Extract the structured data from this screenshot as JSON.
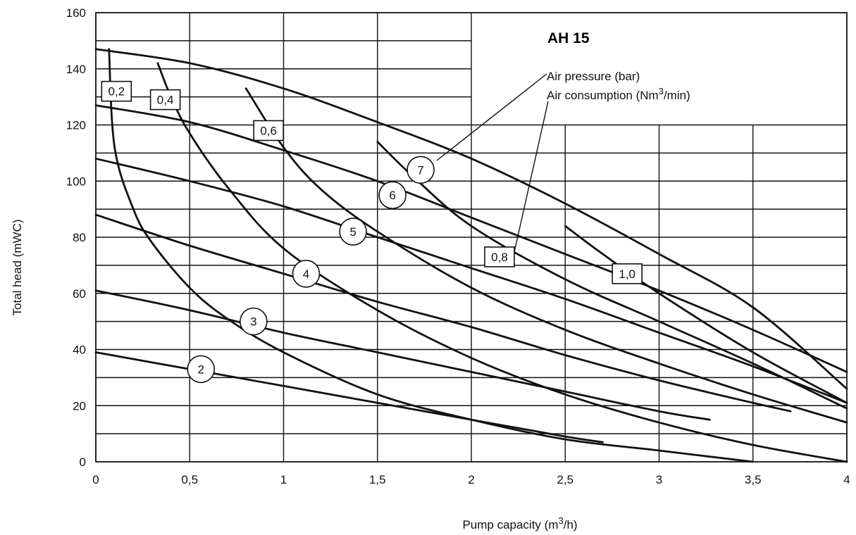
{
  "chart_data": {
    "type": "line",
    "title": "AH 15",
    "xlabel": "Pump capacity (m3/h)",
    "xlabel_main": "Pump capacity (m",
    "xlabel_sup": "3",
    "xlabel_end": "/h)",
    "ylabel": "Total head (mWC)",
    "xlim": [
      0,
      4
    ],
    "ylim": [
      0,
      160
    ],
    "x_ticks": [
      0,
      0.5,
      1,
      1.5,
      2,
      2.5,
      3,
      3.5,
      4
    ],
    "x_tick_labels": [
      "0",
      "0,5",
      "1",
      "1,5",
      "2",
      "2,5",
      "3",
      "3,5",
      "4"
    ],
    "y_ticks": [
      0,
      20,
      40,
      60,
      80,
      100,
      120,
      140,
      160
    ],
    "y_tick_labels": [
      "0",
      "20",
      "40",
      "60",
      "80",
      "100",
      "120",
      "140",
      "160"
    ],
    "grid": true,
    "legend": {
      "line1": "Air pressure (bar)",
      "line2_main": "Air consumption (Nm",
      "line2_sup": "3",
      "line2_end": "/min)"
    },
    "pressure_series": [
      {
        "name": "2",
        "x": [
          0,
          0.5,
          1,
          1.5,
          2,
          2.5,
          2.7
        ],
        "y": [
          39,
          33,
          27,
          21,
          15,
          9,
          7
        ]
      },
      {
        "name": "3",
        "x": [
          0,
          0.5,
          1,
          1.5,
          2,
          2.5,
          3,
          3.27
        ],
        "y": [
          61,
          54,
          46,
          39,
          32,
          25,
          18,
          15
        ]
      },
      {
        "name": "4",
        "x": [
          0,
          0.5,
          1,
          1.5,
          2,
          2.5,
          3,
          3.5,
          3.7
        ],
        "y": [
          88,
          77,
          67,
          57,
          48,
          38,
          29,
          21,
          18
        ]
      },
      {
        "name": "5",
        "x": [
          0,
          0.5,
          1,
          1.5,
          2,
          2.5,
          3,
          3.5,
          4
        ],
        "y": [
          108,
          100,
          91,
          80,
          69,
          58,
          46,
          34,
          21
        ]
      },
      {
        "name": "6",
        "x": [
          0,
          0.5,
          1,
          1.5,
          2,
          2.5,
          3,
          3.5,
          4
        ],
        "y": [
          127,
          121,
          111,
          100,
          87,
          74,
          61,
          47,
          32
        ]
      },
      {
        "name": "7",
        "x": [
          0,
          0.5,
          1,
          1.5,
          2,
          2.5,
          3,
          3.5,
          4
        ],
        "y": [
          147,
          142,
          133,
          121,
          108,
          92,
          74,
          55,
          26
        ]
      }
    ],
    "consumption_series": [
      {
        "name": "0,2",
        "x": [
          0.07,
          0.1,
          0.2,
          0.3,
          0.5,
          0.7,
          1.0,
          1.5,
          2.0,
          2.5,
          3.0,
          3.5
        ],
        "y": [
          147,
          112,
          90,
          78,
          62,
          51,
          39,
          24,
          15,
          8,
          4,
          0
        ]
      },
      {
        "name": "0,4",
        "x": [
          0.33,
          0.4,
          0.5,
          0.7,
          1.0,
          1.5,
          2.0,
          2.5,
          3.0,
          3.5,
          4.0
        ],
        "y": [
          142,
          130,
          117,
          98,
          76,
          54,
          37,
          24,
          14,
          6,
          0
        ]
      },
      {
        "name": "0,6",
        "x": [
          0.8,
          1.0,
          1.2,
          1.5,
          2.0,
          2.5,
          3.0,
          3.5,
          4.0
        ],
        "y": [
          133,
          112,
          97,
          82,
          62,
          47,
          35,
          24,
          14
        ]
      },
      {
        "name": "0,8",
        "x": [
          1.5,
          1.7,
          2.0,
          2.5,
          3.0,
          3.5,
          4.0
        ],
        "y": [
          114,
          101,
          84,
          65,
          50,
          35,
          19
        ]
      },
      {
        "name": "1,0",
        "x": [
          2.5,
          2.7,
          3.0,
          3.5,
          4.0
        ],
        "y": [
          84,
          74,
          60,
          39,
          21
        ]
      }
    ],
    "curve_labels": [
      {
        "text": "2",
        "shape": "circle",
        "x": 0.56,
        "y": 33
      },
      {
        "text": "3",
        "shape": "circle",
        "x": 0.84,
        "y": 50
      },
      {
        "text": "4",
        "shape": "circle",
        "x": 1.12,
        "y": 67
      },
      {
        "text": "5",
        "shape": "circle",
        "x": 1.37,
        "y": 82
      },
      {
        "text": "6",
        "shape": "circle",
        "x": 1.58,
        "y": 95
      },
      {
        "text": "7",
        "shape": "circle",
        "x": 1.73,
        "y": 104
      },
      {
        "text": "0,2",
        "shape": "box",
        "x": 0.11,
        "y": 132
      },
      {
        "text": "0,4",
        "shape": "box",
        "x": 0.37,
        "y": 129
      },
      {
        "text": "0,6",
        "shape": "box",
        "x": 0.92,
        "y": 118
      },
      {
        "text": "0,8",
        "shape": "box",
        "x": 2.15,
        "y": 73
      },
      {
        "text": "1,0",
        "shape": "box",
        "x": 2.83,
        "y": 67
      }
    ]
  }
}
